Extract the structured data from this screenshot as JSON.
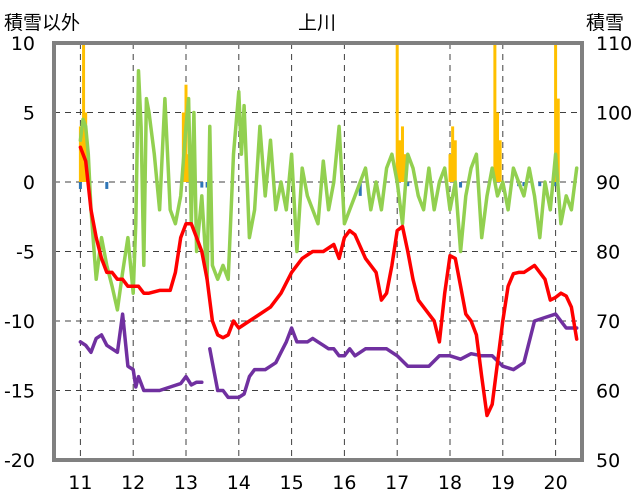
{
  "chart_data": {
    "type": "line",
    "title": "上川",
    "ylabel_left": "積雪以外",
    "ylabel_right": "積雪",
    "x_ticks": [
      "11",
      "12",
      "13",
      "14",
      "15",
      "16",
      "17",
      "18",
      "19",
      "20"
    ],
    "xlim": [
      10.5,
      20.5
    ],
    "ylim_left": [
      -20,
      10
    ],
    "ylim_right": [
      50,
      110
    ],
    "y_ticks_left": [
      "10",
      "5",
      "0",
      "-5",
      "-10",
      "-15",
      "-20"
    ],
    "y_ticks_right": [
      "110",
      "100",
      "90",
      "80",
      "70",
      "60",
      "50"
    ],
    "grid": "dashed",
    "colors": {
      "red": "#ff0000",
      "green": "#92d050",
      "purple": "#7030a0",
      "orange_bars": "#ffc000",
      "blue_bars": "#2e75b6",
      "frame": "#808080"
    },
    "series": [
      {
        "axis": "left",
        "color": "#ff0000",
        "x": [
          11.0,
          11.1,
          11.2,
          11.3,
          11.4,
          11.5,
          11.6,
          11.7,
          11.8,
          11.9,
          12.0,
          12.1,
          12.2,
          12.3,
          12.5,
          12.7,
          12.8,
          12.9,
          13.0,
          13.1,
          13.2,
          13.3,
          13.4,
          13.5,
          13.6,
          13.7,
          13.8,
          13.9,
          14.0,
          14.2,
          14.4,
          14.6,
          14.8,
          15.0,
          15.2,
          15.4,
          15.6,
          15.8,
          15.9,
          16.0,
          16.1,
          16.2,
          16.4,
          16.6,
          16.7,
          16.8,
          16.9,
          17.0,
          17.1,
          17.2,
          17.3,
          17.4,
          17.5,
          17.6,
          17.7,
          17.8,
          17.9,
          18.0,
          18.1,
          18.2,
          18.3,
          18.4,
          18.5,
          18.6,
          18.7,
          18.8,
          18.9,
          19.0,
          19.1,
          19.2,
          19.3,
          19.4,
          19.6,
          19.8,
          19.9,
          20.0,
          20.1,
          20.2,
          20.3,
          20.4
        ],
        "y": [
          2.5,
          1.5,
          -2,
          -4,
          -5.5,
          -6.5,
          -6.5,
          -7,
          -7,
          -7.5,
          -7.5,
          -7.5,
          -8,
          -8,
          -7.8,
          -7.8,
          -6.5,
          -4,
          -3,
          -3,
          -4,
          -5,
          -7,
          -10,
          -11,
          -11.2,
          -11,
          -10,
          -10.5,
          -10,
          -9.5,
          -9,
          -8,
          -6.5,
          -5.5,
          -5,
          -5,
          -4.5,
          -5.5,
          -4,
          -3.5,
          -3.8,
          -5.5,
          -6.5,
          -8.5,
          -8,
          -6,
          -3.5,
          -3.2,
          -5,
          -7,
          -8.5,
          -9,
          -9.5,
          -10,
          -11.5,
          -8,
          -5.3,
          -5.5,
          -7.5,
          -9.5,
          -10,
          -11,
          -14,
          -16.8,
          -16,
          -13,
          -10,
          -7.5,
          -6.6,
          -6.5,
          -6.5,
          -6,
          -7,
          -8.5,
          -8.3,
          -8,
          -8.2,
          -9,
          -11.3
        ]
      },
      {
        "axis": "left",
        "color": "#92d050",
        "x": [
          11.0,
          11.05,
          11.1,
          11.15,
          11.2,
          11.3,
          11.4,
          11.5,
          11.6,
          11.7,
          11.8,
          11.9,
          12.0,
          12.05,
          12.1,
          12.15,
          12.2,
          12.25,
          12.3,
          12.4,
          12.5,
          12.6,
          12.7,
          12.8,
          12.9,
          13.0,
          13.05,
          13.1,
          13.15,
          13.2,
          13.3,
          13.4,
          13.45,
          13.5,
          13.6,
          13.7,
          13.8,
          13.9,
          14.0,
          14.05,
          14.1,
          14.2,
          14.3,
          14.4,
          14.5,
          14.6,
          14.7,
          14.8,
          14.9,
          15.0,
          15.1,
          15.2,
          15.3,
          15.4,
          15.5,
          15.6,
          15.7,
          15.8,
          15.9,
          16.0,
          16.1,
          16.2,
          16.3,
          16.4,
          16.5,
          16.6,
          16.7,
          16.8,
          16.9,
          17.0,
          17.1,
          17.2,
          17.3,
          17.4,
          17.5,
          17.6,
          17.7,
          17.8,
          17.9,
          18.0,
          18.1,
          18.2,
          18.3,
          18.4,
          18.5,
          18.6,
          18.7,
          18.8,
          18.9,
          19.0,
          19.1,
          19.2,
          19.3,
          19.4,
          19.5,
          19.6,
          19.7,
          19.8,
          19.9,
          20.0,
          20.1,
          20.2,
          20.3,
          20.4
        ],
        "y": [
          3,
          4.5,
          4,
          2,
          -2,
          -7,
          -4,
          -6,
          -7.5,
          -9.2,
          -6.5,
          -4,
          -8,
          -3,
          8,
          4,
          -6,
          6,
          5,
          2,
          -2,
          6,
          -2,
          -3,
          -1,
          4,
          6,
          -3,
          5,
          -5,
          -1,
          -7,
          4,
          -6,
          -7,
          -6,
          -7,
          2,
          6.5,
          2,
          5.5,
          -4,
          -2,
          4,
          -1,
          3,
          -2,
          0,
          -2,
          2,
          -5,
          1,
          -1,
          -2,
          -3,
          1.5,
          -2,
          0,
          4,
          -3,
          -2,
          -1,
          0,
          1,
          -2,
          0,
          -2,
          1,
          2,
          0,
          -3,
          2,
          1,
          -1,
          -2,
          1,
          -2,
          0,
          1,
          -2,
          0,
          -5,
          -1,
          1,
          2,
          -4,
          -1,
          1,
          -1,
          0,
          -2,
          1,
          0,
          -1,
          1,
          -1,
          -4,
          0,
          -2,
          2,
          -3,
          -1,
          -2,
          1
        ]
      },
      {
        "axis": "right",
        "color": "#7030a0",
        "segments": [
          {
            "x": [
              11.0,
              11.1,
              11.2,
              11.3,
              11.4,
              11.5,
              11.6,
              11.7,
              11.8,
              11.9,
              12.0,
              12.05,
              12.1,
              12.2,
              12.3,
              12.5,
              12.7,
              12.9,
              13.0,
              13.1,
              13.2,
              13.3
            ],
            "y": [
              67,
              66.5,
              65.5,
              67.5,
              68,
              66.5,
              66,
              65.5,
              71,
              63.5,
              63,
              60.5,
              62,
              60,
              60,
              60,
              60.5,
              61,
              62,
              60.8,
              61.2,
              61.2
            ]
          },
          {
            "x": [
              13.45,
              13.5,
              13.6,
              13.7,
              13.8,
              13.9,
              14.0,
              14.1,
              14.2,
              14.3,
              14.4,
              14.5,
              14.6,
              14.7,
              14.8,
              14.9,
              15.0,
              15.1,
              15.2,
              15.3,
              15.4,
              15.5,
              15.6,
              15.7,
              15.8,
              15.9,
              16.0,
              16.1,
              16.2,
              16.4,
              16.6,
              16.8,
              17.0,
              17.2,
              17.4,
              17.6,
              17.8,
              18.0,
              18.2,
              18.4,
              18.6,
              18.8,
              19.0,
              19.2,
              19.4,
              19.6,
              19.8,
              20.0,
              20.2,
              20.4
            ],
            "y": [
              66,
              64,
              60,
              60,
              59,
              59,
              59,
              59.5,
              62,
              63,
              63,
              63,
              63.5,
              64,
              65.5,
              67,
              69,
              67,
              67,
              67,
              67.5,
              67,
              66.5,
              66,
              66,
              65,
              65,
              66,
              65,
              66,
              66,
              66,
              65,
              63.5,
              63.5,
              63.5,
              65,
              65,
              64.5,
              65.3,
              65,
              65,
              63.5,
              63,
              64,
              70,
              70.5,
              71,
              69,
              69
            ]
          }
        ]
      }
    ],
    "bars": [
      {
        "axis": "left",
        "color": "#ffc000",
        "x": [
          11.0,
          11.03,
          11.06,
          11.1,
          12.95,
          13.0,
          13.05,
          17.0,
          17.05,
          17.1,
          17.15,
          18.0,
          18.05,
          18.1,
          18.85,
          18.9,
          18.95,
          20.0,
          20.05
        ],
        "values": [
          4,
          3,
          10,
          5,
          5,
          7,
          2,
          10,
          3,
          4,
          2,
          2,
          4,
          3,
          10,
          5,
          3,
          10,
          6
        ]
      },
      {
        "axis": "left",
        "color": "#2e75b6",
        "x": [
          11.0,
          11.5,
          13.3,
          13.4,
          16.3,
          17.2,
          18.2,
          19.3,
          19.4,
          19.7,
          19.8,
          20.0
        ],
        "values": [
          -0.5,
          -0.5,
          -0.4,
          -0.4,
          -1,
          -0.3,
          -0.4,
          -0.3,
          -0.3,
          -0.3,
          -0.4,
          -0.3
        ]
      }
    ]
  }
}
